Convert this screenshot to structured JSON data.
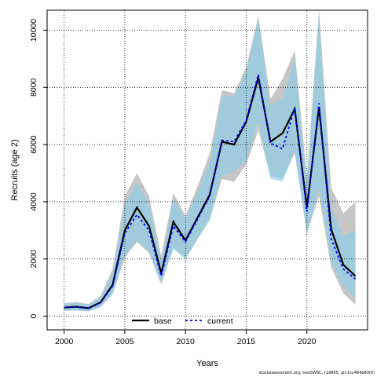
{
  "chart_data": {
    "type": "line",
    "xlabel": "Years",
    "ylabel": "Recruits (age 2)",
    "xlim": [
      1998.6,
      2025.0
    ],
    "ylim": [
      -480,
      10700
    ],
    "x_ticks": [
      2000,
      2005,
      2010,
      2015,
      2020
    ],
    "y_ticks": [
      0,
      2000,
      4000,
      6000,
      8000,
      10000
    ],
    "grid": true,
    "legend": "bottom-center",
    "years": [
      2000,
      2001,
      2002,
      2003,
      2004,
      2005,
      2006,
      2007,
      2008,
      2009,
      2010,
      2011,
      2012,
      2013,
      2014,
      2015,
      2016,
      2017,
      2018,
      2019,
      2020,
      2021,
      2022,
      2023,
      2024
    ],
    "series": [
      {
        "name": "base",
        "color": "#000000",
        "linestyle": "solid",
        "band_color": "#a0a0a0",
        "values": [
          300,
          330,
          280,
          480,
          1100,
          3000,
          3800,
          3150,
          1500,
          3300,
          2650,
          3450,
          4250,
          6100,
          6000,
          6800,
          8350,
          6100,
          6400,
          7250,
          3800,
          7300,
          3050,
          1800,
          1400
        ],
        "lower": [
          180,
          200,
          170,
          320,
          780,
          2050,
          2600,
          2200,
          1100,
          2400,
          2000,
          2700,
          3400,
          4800,
          4700,
          5300,
          6500,
          4900,
          4800,
          5700,
          2900,
          4200,
          1700,
          800,
          400
        ],
        "upper": [
          450,
          500,
          430,
          700,
          1650,
          4200,
          5000,
          4200,
          2100,
          4300,
          3500,
          4550,
          5700,
          7900,
          7800,
          8700,
          10500,
          7600,
          8300,
          9300,
          4850,
          10700,
          4500,
          3600,
          4000
        ]
      },
      {
        "name": "current",
        "color": "#0000ff",
        "linestyle": "dashed",
        "band_color": "#87ceeb",
        "values": [
          300,
          320,
          270,
          470,
          1050,
          2900,
          3550,
          3000,
          1400,
          3150,
          2600,
          3400,
          4200,
          6150,
          6100,
          6850,
          8450,
          6050,
          5850,
          7300,
          3650,
          7450,
          2700,
          1650,
          1300
        ],
        "lower": [
          190,
          200,
          170,
          310,
          760,
          2100,
          2650,
          2250,
          1150,
          2350,
          2000,
          2700,
          3350,
          4900,
          5050,
          5450,
          6800,
          4800,
          4700,
          5750,
          2850,
          4500,
          1900,
          1050,
          650
        ],
        "upper": [
          430,
          460,
          400,
          670,
          1500,
          3900,
          4700,
          3900,
          1950,
          4100,
          3400,
          4350,
          5400,
          7700,
          7700,
          8600,
          10400,
          7400,
          7600,
          9000,
          4700,
          10700,
          3800,
          2800,
          3000
        ]
      }
    ]
  },
  "footer": "stockassessment.org, testSWSC, r19605, git:1cc464b80(6)"
}
